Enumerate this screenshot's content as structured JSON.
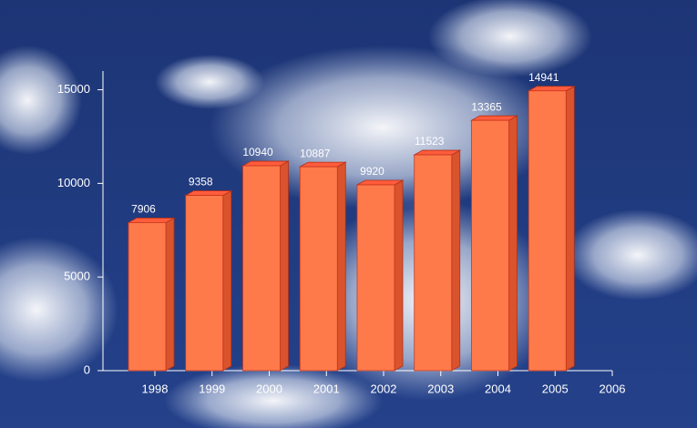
{
  "chart_data": {
    "type": "bar",
    "categories": [
      "1998",
      "1999",
      "2000",
      "2001",
      "2002",
      "2003",
      "2004",
      "2005",
      "2006"
    ],
    "values": [
      7906,
      9358,
      10940,
      10887,
      9920,
      11523,
      13365,
      14941,
      null
    ],
    "color": "#ff7a4a",
    "ylim": [
      0,
      16000
    ],
    "yticks": [
      0,
      5000,
      10000,
      15000
    ]
  }
}
